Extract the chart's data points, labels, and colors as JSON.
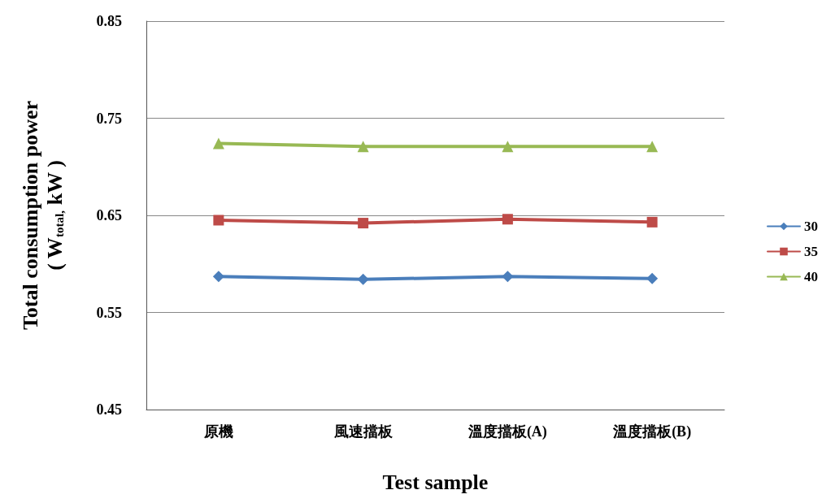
{
  "chart_data": {
    "type": "line",
    "xlabel": "Test sample",
    "ylabel": "Total consumption power\n( W$_{total,}$ kW )",
    "categories": [
      "原機",
      "風速擋板",
      "溫度擋板(A)",
      "溫度擋板(B)"
    ],
    "series": [
      {
        "name": "30",
        "color": "#4a7ebb",
        "marker": "diamond",
        "values": [
          0.587,
          0.584,
          0.587,
          0.585
        ]
      },
      {
        "name": "35",
        "color": "#be4b48",
        "marker": "square",
        "values": [
          0.645,
          0.642,
          0.646,
          0.643
        ]
      },
      {
        "name": "40",
        "color": "#98b954",
        "marker": "triangle",
        "values": [
          0.724,
          0.721,
          0.721,
          0.721
        ]
      }
    ],
    "ylim": [
      0.45,
      0.85
    ],
    "yticks": [
      0.45,
      0.55,
      0.65,
      0.75,
      0.85
    ],
    "grid": "y",
    "legend": "right",
    "line_style": "solid"
  }
}
